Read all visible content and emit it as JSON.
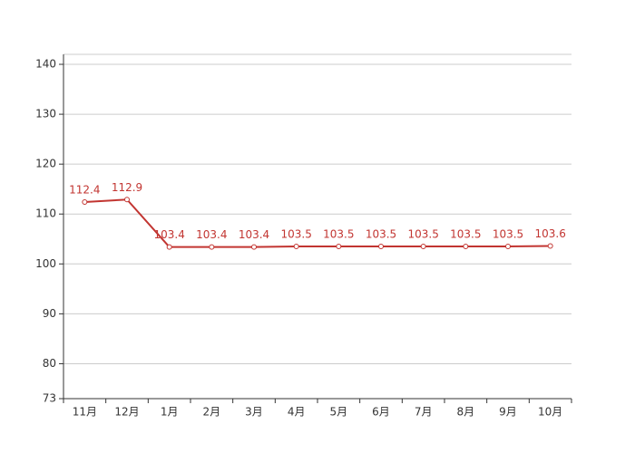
{
  "chart_data": {
    "type": "line",
    "categories": [
      "11月",
      "12月",
      "1月",
      "2月",
      "3月",
      "4月",
      "5月",
      "6月",
      "7月",
      "8月",
      "9月",
      "10月"
    ],
    "series": [
      {
        "color": "#c23531",
        "values": [
          112.4,
          112.9,
          103.4,
          103.4,
          103.4,
          103.5,
          103.5,
          103.5,
          103.5,
          103.5,
          103.5,
          103.6
        ]
      }
    ],
    "ylim": [
      73,
      142
    ],
    "yticks": [
      73,
      80,
      90,
      100,
      110,
      120,
      130,
      140
    ],
    "grid": true
  }
}
